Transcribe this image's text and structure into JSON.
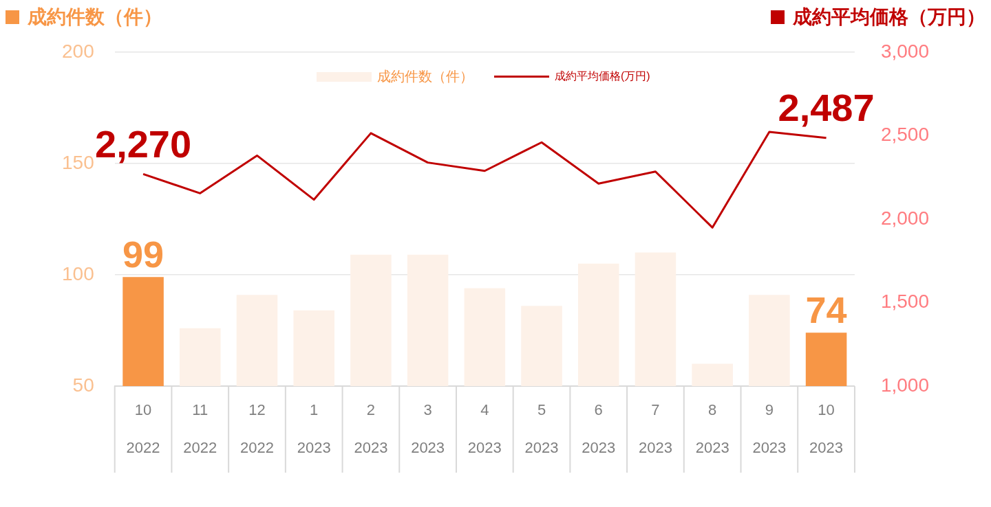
{
  "chart_data": {
    "type": "bar",
    "ylabel": "成約件数（件）",
    "y2label": "成約平均価格（万円）",
    "categories": [
      "10\n2022",
      "11\n2022",
      "12\n2022",
      "1\n2023",
      "2\n2023",
      "3\n2023",
      "4\n2023",
      "5\n2023",
      "6\n2023",
      "7\n2023",
      "8\n2023",
      "9\n2023",
      "10\n2023"
    ],
    "series": [
      {
        "name": "成約件数（件）",
        "color": "#fdf1e8",
        "colors": [
          "#f79646",
          "#fdf1e8",
          "#fdf1e8",
          "#fdf1e8",
          "#fdf1e8",
          "#fdf1e8",
          "#fdf1e8",
          "#fdf1e8",
          "#fdf1e8",
          "#fdf1e8",
          "#fdf1e8",
          "#fdf1e8",
          "#f79646"
        ],
        "values": [
          99,
          76,
          91,
          84,
          109,
          109,
          94,
          86,
          105,
          110,
          60,
          91,
          74
        ],
        "value_labels": [
          "99",
          null,
          null,
          null,
          null,
          null,
          null,
          null,
          null,
          null,
          null,
          null,
          "74"
        ]
      },
      {
        "name": "成約平均価格(万円)",
        "type": "line",
        "axis": "y2",
        "color": "#c00000",
        "values": [
          2270,
          2155,
          2381,
          2117,
          2515,
          2339,
          2289,
          2460,
          2213,
          2285,
          1950,
          2523,
          2487
        ],
        "value_labels": [
          "2,270",
          null,
          null,
          null,
          null,
          null,
          null,
          null,
          null,
          null,
          null,
          null,
          "2,487"
        ]
      }
    ],
    "ylim": [
      50,
      200
    ],
    "yticks": [
      50,
      100,
      150,
      200
    ],
    "y2lim": [
      1000,
      3000
    ],
    "y2ticks": [
      {
        "value": 1000,
        "label": "1,000"
      },
      {
        "value": 1500,
        "label": "1,500"
      },
      {
        "value": 2000,
        "label": "2,000"
      },
      {
        "value": 2500,
        "label": "2,500"
      },
      {
        "value": 3000,
        "label": "3,000"
      }
    ],
    "grid": "y",
    "legend": "top",
    "marker": "none",
    "line_style": "solid"
  }
}
